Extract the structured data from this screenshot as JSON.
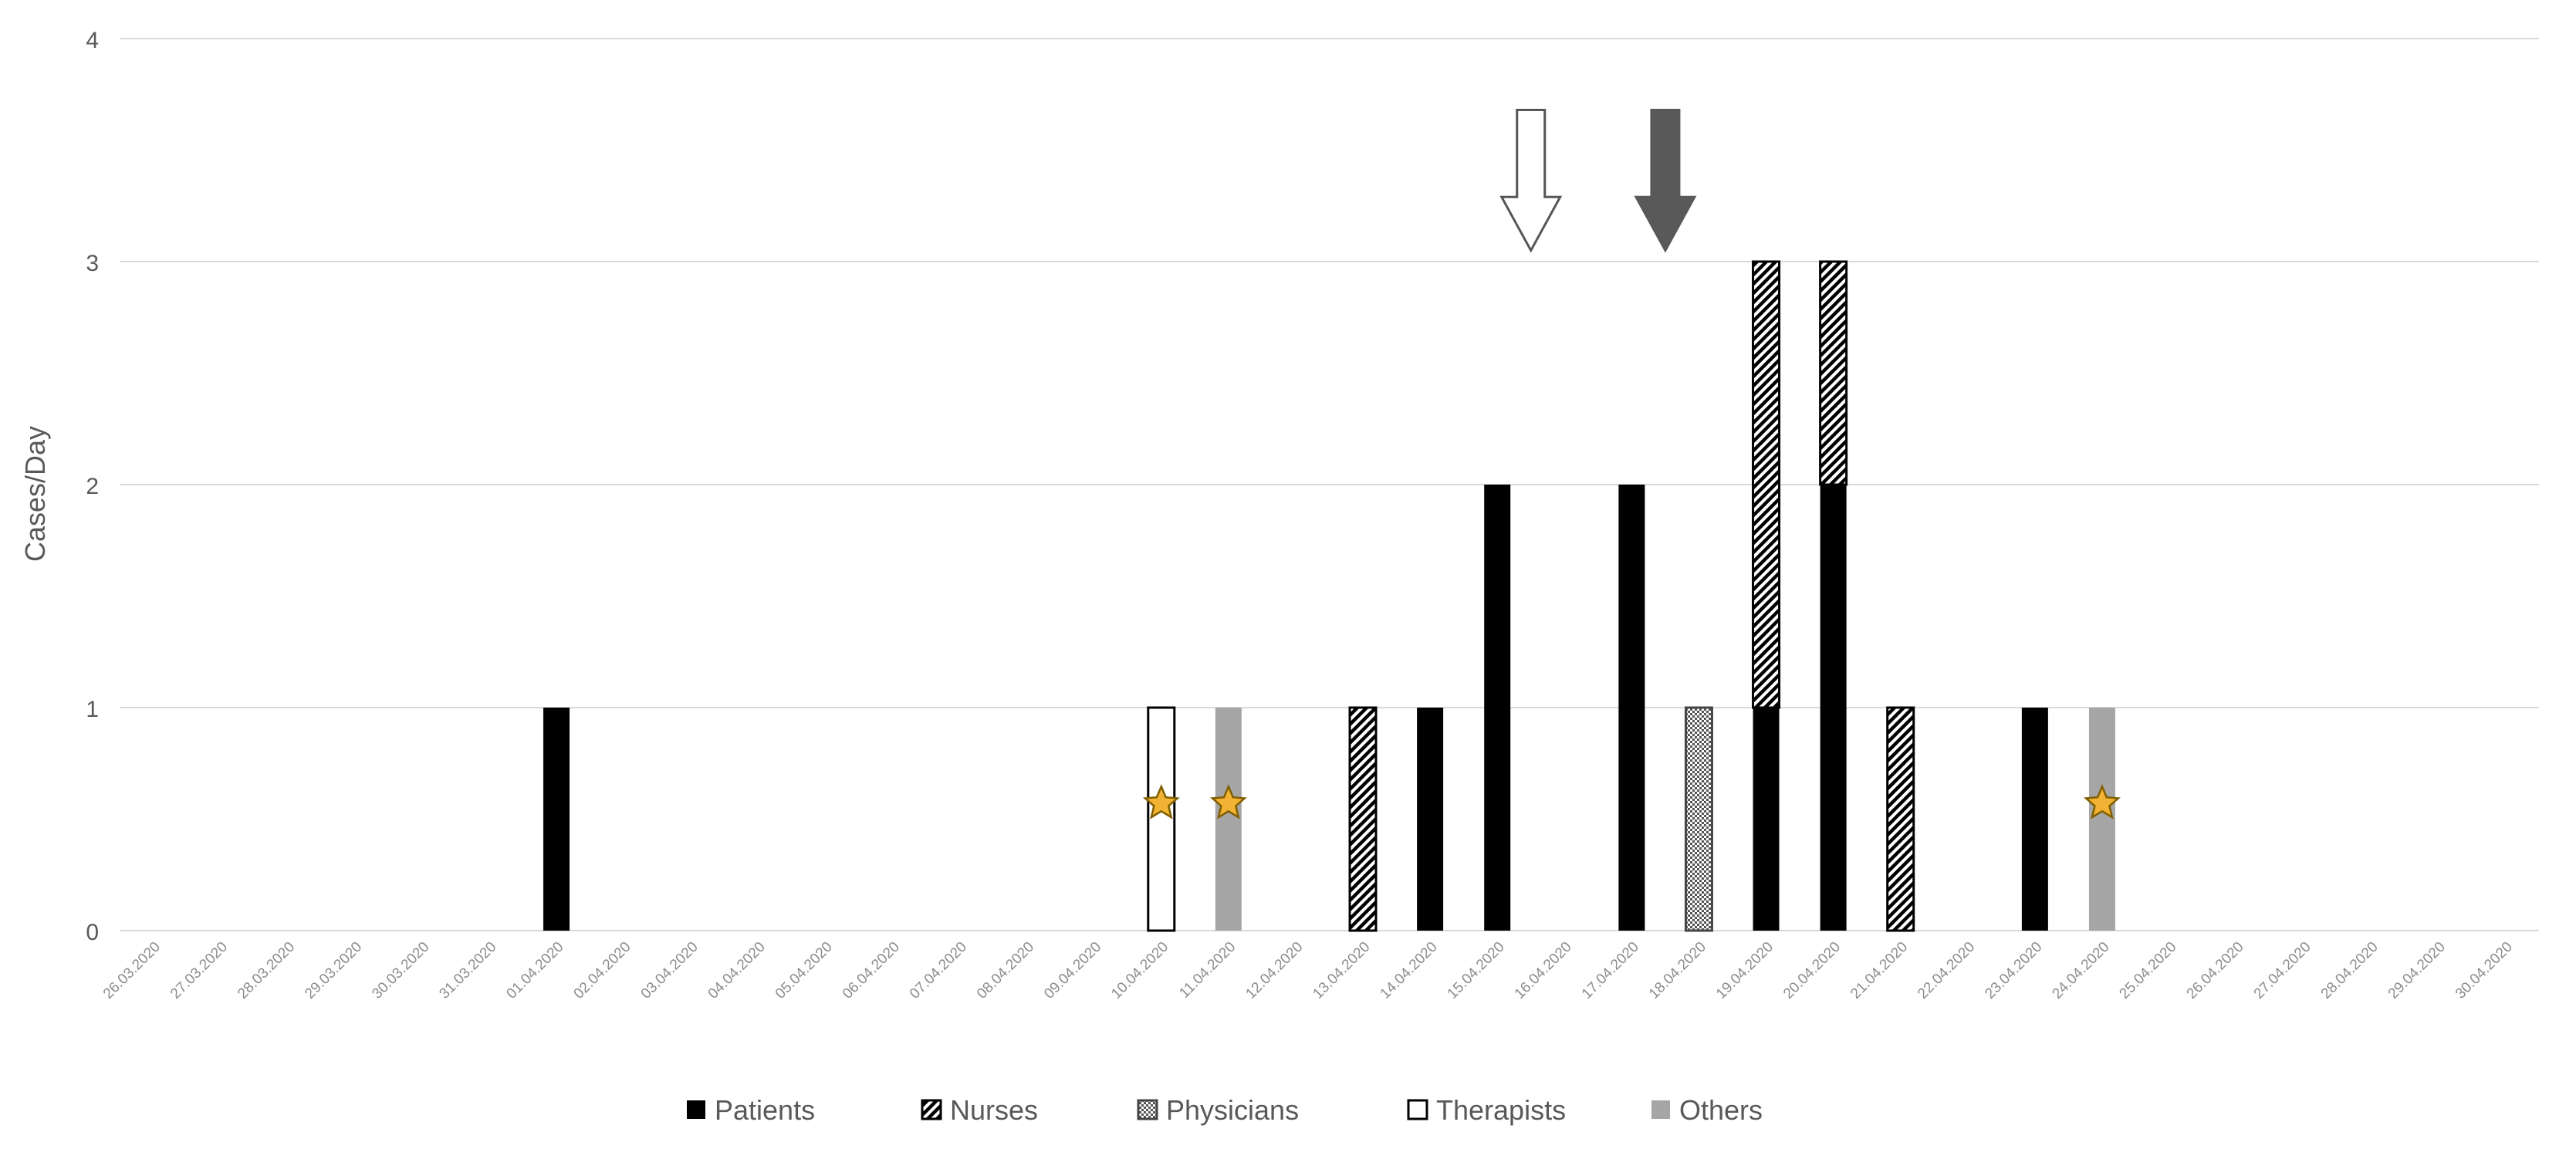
{
  "chart_data": {
    "type": "bar",
    "stacked": true,
    "title": "",
    "xlabel": "",
    "ylabel": "Cases/Day",
    "ylim": [
      0,
      4
    ],
    "yticks": [
      0,
      1,
      2,
      3,
      4
    ],
    "grid": "horizontal",
    "legend_position": "bottom",
    "categories": [
      "26.03.2020",
      "27.03.2020",
      "28.03.2020",
      "29.03.2020",
      "30.03.2020",
      "31.03.2020",
      "01.04.2020",
      "02.04.2020",
      "03.04.2020",
      "04.04.2020",
      "05.04.2020",
      "06.04.2020",
      "07.04.2020",
      "08.04.2020",
      "09.04.2020",
      "10.04.2020",
      "11.04.2020",
      "12.04.2020",
      "13.04.2020",
      "14.04.2020",
      "15.04.2020",
      "16.04.2020",
      "17.04.2020",
      "18.04.2020",
      "19.04.2020",
      "20.04.2020",
      "21.04.2020",
      "22.04.2020",
      "23.04.2020",
      "24.04.2020",
      "25.04.2020",
      "26.04.2020",
      "27.04.2020",
      "28.04.2020",
      "29.04.2020",
      "30.04.2020"
    ],
    "series": [
      {
        "name": "Patients",
        "pattern": "solid-black",
        "values": [
          0,
          0,
          0,
          0,
          0,
          0,
          1,
          0,
          0,
          0,
          0,
          0,
          0,
          0,
          0,
          0,
          0,
          0,
          0,
          1,
          2,
          0,
          2,
          0,
          1,
          2,
          0,
          0,
          1,
          0,
          0,
          0,
          0,
          0,
          0,
          0
        ]
      },
      {
        "name": "Nurses",
        "pattern": "diagonal-hatch",
        "values": [
          0,
          0,
          0,
          0,
          0,
          0,
          0,
          0,
          0,
          0,
          0,
          0,
          0,
          0,
          0,
          0,
          0,
          0,
          1,
          0,
          0,
          0,
          0,
          0,
          2,
          1,
          1,
          0,
          0,
          0,
          0,
          0,
          0,
          0,
          0,
          0
        ]
      },
      {
        "name": "Physicians",
        "pattern": "dotted",
        "values": [
          0,
          0,
          0,
          0,
          0,
          0,
          0,
          0,
          0,
          0,
          0,
          0,
          0,
          0,
          0,
          0,
          0,
          0,
          0,
          0,
          0,
          0,
          0,
          1,
          0,
          0,
          0,
          0,
          0,
          0,
          0,
          0,
          0,
          0,
          0,
          0
        ]
      },
      {
        "name": "Therapists",
        "pattern": "white-outline",
        "values": [
          0,
          0,
          0,
          0,
          0,
          0,
          0,
          0,
          0,
          0,
          0,
          0,
          0,
          0,
          0,
          1,
          0,
          0,
          0,
          0,
          0,
          0,
          0,
          0,
          0,
          0,
          0,
          0,
          0,
          0,
          0,
          0,
          0,
          0,
          0,
          0
        ]
      },
      {
        "name": "Others",
        "pattern": "solid-gray",
        "values": [
          0,
          0,
          0,
          0,
          0,
          0,
          0,
          0,
          0,
          0,
          0,
          0,
          0,
          0,
          0,
          0,
          1,
          0,
          0,
          0,
          0,
          0,
          0,
          0,
          0,
          0,
          0,
          0,
          0,
          1,
          0,
          0,
          0,
          0,
          0,
          0
        ]
      }
    ],
    "star_markers": [
      {
        "category": "10.04.2020",
        "y": 0.57
      },
      {
        "category": "11.04.2020",
        "y": 0.57
      },
      {
        "category": "24.04.2020",
        "y": 0.57
      }
    ],
    "arrow_markers": [
      {
        "style": "hollow",
        "category_between": [
          "15.04.2020",
          "16.04.2020"
        ]
      },
      {
        "style": "filled-dark",
        "category_between": [
          "17.04.2020",
          "18.04.2020"
        ]
      }
    ],
    "colors": {
      "patients": "#000000",
      "others": "#a6a6a6",
      "grid": "#d9d9d9",
      "axis_text": "#595959",
      "tick_text": "#8c8c8c",
      "arrow_dark": "#595959",
      "star_fill": "#f2b233",
      "star_stroke": "#7f5f00"
    }
  }
}
